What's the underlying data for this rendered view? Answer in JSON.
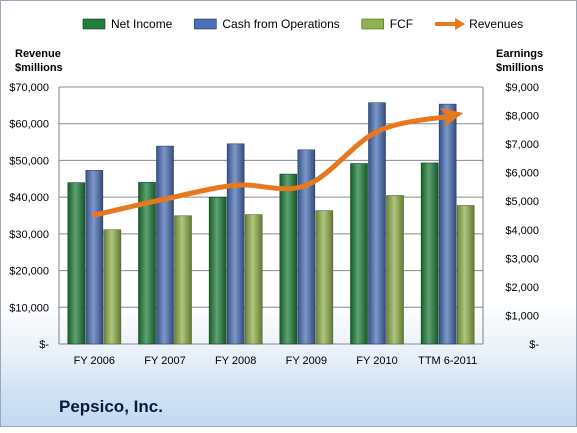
{
  "company": "Pepsico, Inc.",
  "chart_data": {
    "type": "bar",
    "categories": [
      "FY 2006",
      "FY 2007",
      "FY 2008",
      "FY 2009",
      "FY 2010",
      "TTM 6-2011"
    ],
    "series": [
      {
        "name": "Net Income",
        "axis": "right",
        "color": "#1e7e3a",
        "values": [
          5650,
          5660,
          5140,
          5950,
          6320,
          6340
        ]
      },
      {
        "name": "Cash from Operations",
        "axis": "right",
        "color": "#4a6fb5",
        "values": [
          6080,
          6930,
          7010,
          6800,
          8450,
          8400
        ]
      },
      {
        "name": "FCF",
        "axis": "right",
        "color": "#8fb04a",
        "values": [
          4000,
          4490,
          4530,
          4670,
          5200,
          4850
        ]
      },
      {
        "name": "Revenues",
        "type": "line",
        "axis": "left",
        "color": "#e8781e",
        "values": [
          35137,
          39474,
          43251,
          43232,
          57838,
          62000
        ]
      }
    ],
    "left_axis": {
      "label_line1": "Revenue",
      "label_line2": "$millions",
      "ylim": [
        0,
        70000
      ],
      "ticks": [
        "$-",
        "$10,000",
        "$20,000",
        "$30,000",
        "$40,000",
        "$50,000",
        "$60,000",
        "$70,000"
      ]
    },
    "right_axis": {
      "label_line1": "Earnings",
      "label_line2": "$millions",
      "ylim": [
        0,
        9000
      ],
      "ticks": [
        "$-",
        "$1,000",
        "$2,000",
        "$3,000",
        "$4,000",
        "$5,000",
        "$6,000",
        "$7,000",
        "$8,000",
        "$9,000"
      ]
    },
    "legend_position": "top",
    "grid": true
  }
}
